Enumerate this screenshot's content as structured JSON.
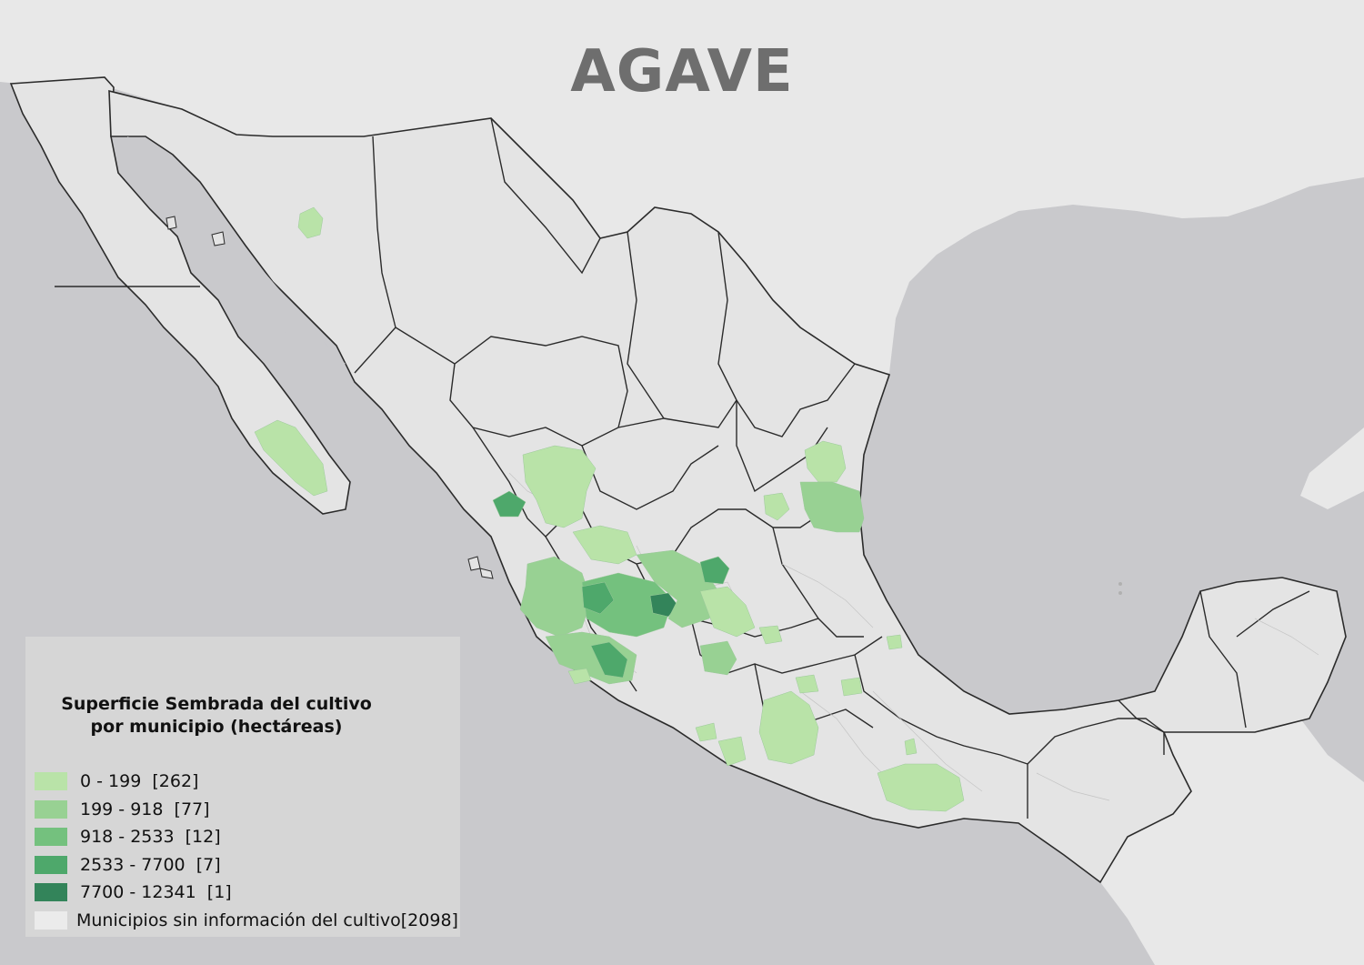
{
  "map": {
    "title": "AGAVE",
    "colors": {
      "ocean": "#c9c9cc",
      "foreign_land": "#e8e8e8",
      "mexico_land": "#e4e4e4",
      "state_border": "#2b2b2b",
      "municipal_border": "#bdbdbd"
    }
  },
  "legend": {
    "title_line1": "Superficie Sembrada del cultivo",
    "title_line2": "por municipio (hectáreas)",
    "classes": [
      {
        "label": "0 - 199  [262]",
        "color": "#b9e3a8"
      },
      {
        "label": "199 - 918  [77]",
        "color": "#98d193"
      },
      {
        "label": "918 - 2533  [12]",
        "color": "#74c17e"
      },
      {
        "label": "2533 - 7700  [7]",
        "color": "#4ea86b"
      },
      {
        "label": "7700 - 12341  [1]",
        "color": "#33845a"
      },
      {
        "label": "Municipios sin información del cultivo[2098]",
        "color": "#ebebeb"
      }
    ]
  }
}
